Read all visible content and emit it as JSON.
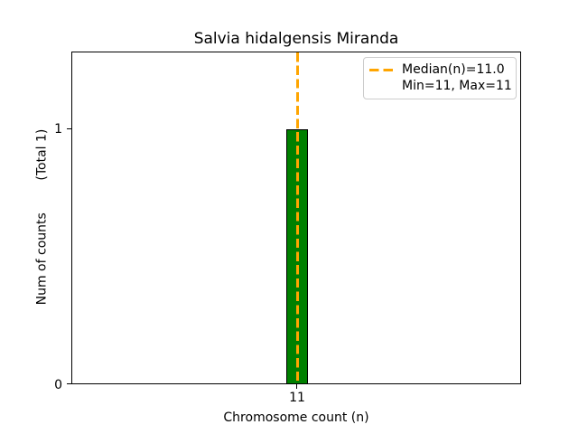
{
  "chart": {
    "title": "Salvia hidalgensis Miranda",
    "xlabel": "Chromosome count (n)",
    "ylabel": "Num of counts        (Total 1)",
    "ytick_labels": [
      "0",
      "1"
    ],
    "xtick_labels": [
      "11"
    ]
  },
  "legend": {
    "position": "upper right",
    "items": [
      {
        "label": "Median(n)=11.0",
        "sample": "orange-dashed-line"
      },
      {
        "label": "Min=11, Max=11",
        "sample": "none"
      }
    ]
  },
  "colors": {
    "bar_fill": "#008000",
    "bar_edge": "#000000",
    "median_line": "#FFA500",
    "legend_border": "#cccccc",
    "text": "#000000",
    "background": "#ffffff"
  },
  "chart_data": {
    "type": "bar",
    "title": "Salvia hidalgensis Miranda",
    "xlabel": "Chromosome count (n)",
    "ylabel": "Num of counts        (Total 1)",
    "x": [
      11
    ],
    "values": [
      1
    ],
    "total_counts": 1,
    "median": 11.0,
    "min": 11,
    "max": 11,
    "xticks": [
      11
    ],
    "yticks": [
      0,
      1
    ],
    "ylim": [
      0,
      1.3
    ],
    "bar_color": "#008000",
    "bar_edge_color": "#000000",
    "median_line": {
      "x": 11.0,
      "color": "#FFA500",
      "style": "dashed",
      "width": 2
    },
    "grid": false,
    "legend_position": "upper right",
    "legend_entries": [
      "Median(n)=11.0",
      "Min=11, Max=11"
    ]
  }
}
